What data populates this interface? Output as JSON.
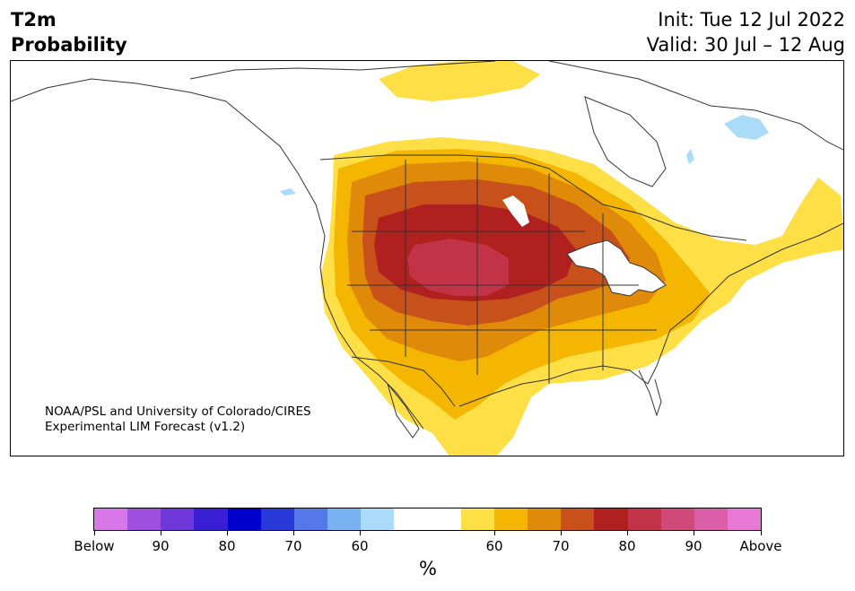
{
  "header": {
    "title_line1": "T2m",
    "title_line2": "Probability",
    "init": "Init: Tue 12 Jul 2022",
    "valid": "Valid: 30 Jul – 12 Aug"
  },
  "map": {
    "credit_line1": "NOAA/PSL and University of Colorado/CIRES",
    "credit_line2": "Experimental LIM Forecast (v1.2)",
    "field": "2-meter temperature probability",
    "max_category": "above normal, 80-85% over central Plains",
    "colors": {
      "land": "#ffffff",
      "border": "#333333"
    }
  },
  "colorbar": {
    "unit": "%",
    "colors": [
      "#d878e8",
      "#a04fe0",
      "#7038d8",
      "#3a1ed4",
      "#0000cc",
      "#2a3ad8",
      "#5578e8",
      "#78b2f2",
      "#aadcfa",
      "#ffffff",
      "#ffffff",
      "#fedf46",
      "#f4b600",
      "#e08a0a",
      "#c8501a",
      "#b0201f",
      "#c33348",
      "#cf4a78",
      "#db5fa8",
      "#e878d8"
    ],
    "tick_labels": [
      "Below",
      "90",
      "80",
      "70",
      "60",
      "60",
      "70",
      "80",
      "90",
      "Above"
    ]
  }
}
